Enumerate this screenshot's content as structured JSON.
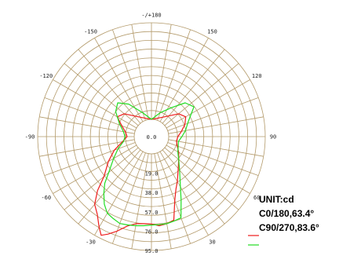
{
  "chart_data": {
    "type": "polar-line",
    "angle_labels": [
      {
        "angle": 180,
        "text": "-/+180"
      },
      {
        "angle": 150,
        "text": "150"
      },
      {
        "angle": -150,
        "text": "-150"
      },
      {
        "angle": 120,
        "text": "120"
      },
      {
        "angle": -120,
        "text": "-120"
      },
      {
        "angle": 90,
        "text": "90"
      },
      {
        "angle": -90,
        "text": "-90"
      },
      {
        "angle": 60,
        "text": "60"
      },
      {
        "angle": -60,
        "text": "-60"
      },
      {
        "angle": 30,
        "text": "30"
      },
      {
        "angle": -30,
        "text": "-30"
      }
    ],
    "ring_labels": [
      "0.0",
      "19.0",
      "38.0",
      "57.0",
      "76.0",
      "95.0"
    ],
    "rmax": 95,
    "unit_label": "UNIT:cd",
    "series": [
      {
        "name": "C0/180,63.4°",
        "color": "#ee1c1c",
        "points": [
          [
            -180,
            0
          ],
          [
            -150,
            5
          ],
          [
            -130,
            18
          ],
          [
            -120,
            22
          ],
          [
            -110,
            14
          ],
          [
            -100,
            9
          ],
          [
            -90,
            7
          ],
          [
            -80,
            12
          ],
          [
            -70,
            22
          ],
          [
            -60,
            32
          ],
          [
            -50,
            44
          ],
          [
            -45,
            58
          ],
          [
            -40,
            70
          ],
          [
            -35,
            76
          ],
          [
            -30,
            86
          ],
          [
            -27,
            92
          ],
          [
            -24,
            88
          ],
          [
            -20,
            82
          ],
          [
            -15,
            74
          ],
          [
            -10,
            70
          ],
          [
            -5,
            69
          ],
          [
            0,
            69
          ],
          [
            5,
            71
          ],
          [
            10,
            70
          ],
          [
            15,
            68
          ],
          [
            20,
            50
          ],
          [
            25,
            40
          ],
          [
            30,
            34
          ],
          [
            40,
            24
          ],
          [
            50,
            18
          ],
          [
            60,
            14
          ],
          [
            70,
            10
          ],
          [
            80,
            8
          ],
          [
            90,
            9
          ],
          [
            100,
            13
          ],
          [
            110,
            18
          ],
          [
            120,
            22
          ],
          [
            130,
            18
          ],
          [
            150,
            5
          ],
          [
            180,
            0
          ]
        ]
      },
      {
        "name": "C90/270,83.6°",
        "color": "#22dd22",
        "points": [
          [
            -180,
            0
          ],
          [
            -160,
            8
          ],
          [
            -145,
            22
          ],
          [
            -135,
            30
          ],
          [
            -125,
            26
          ],
          [
            -112,
            17
          ],
          [
            -100,
            11
          ],
          [
            -90,
            9
          ],
          [
            -80,
            11
          ],
          [
            -70,
            18
          ],
          [
            -60,
            26
          ],
          [
            -50,
            38
          ],
          [
            -45,
            48
          ],
          [
            -40,
            56
          ],
          [
            -35,
            64
          ],
          [
            -30,
            70
          ],
          [
            -25,
            72
          ],
          [
            -20,
            74
          ],
          [
            -15,
            73
          ],
          [
            -10,
            72
          ],
          [
            -5,
            71
          ],
          [
            0,
            70
          ],
          [
            5,
            70
          ],
          [
            10,
            70
          ],
          [
            15,
            69
          ],
          [
            20,
            68
          ],
          [
            25,
            52
          ],
          [
            30,
            40
          ],
          [
            40,
            26
          ],
          [
            50,
            18
          ],
          [
            60,
            13
          ],
          [
            70,
            11
          ],
          [
            80,
            10
          ],
          [
            90,
            13
          ],
          [
            100,
            17
          ],
          [
            112,
            22
          ],
          [
            125,
            34
          ],
          [
            135,
            30
          ],
          [
            145,
            18
          ],
          [
            160,
            8
          ],
          [
            180,
            0
          ]
        ]
      }
    ]
  }
}
